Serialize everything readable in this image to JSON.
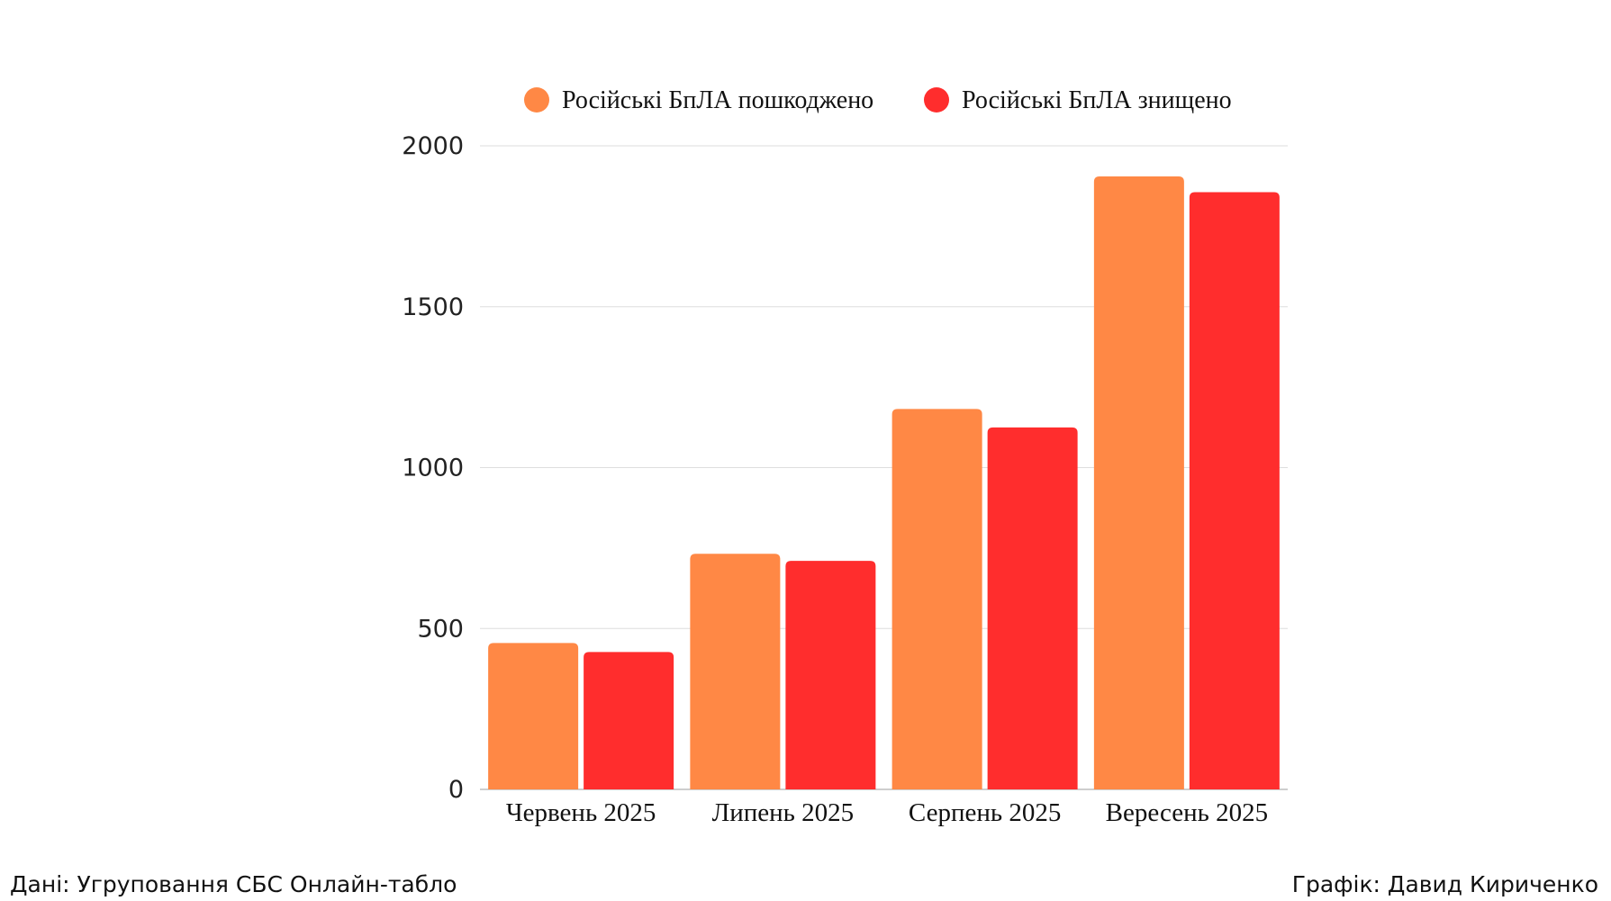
{
  "chart_data": {
    "type": "bar",
    "categories": [
      "Червень 2025",
      "Липень 2025",
      "Серпень 2025",
      "Вересень 2025"
    ],
    "series": [
      {
        "name": "Російські БпЛА пошкоджено",
        "color": "#ff8845",
        "values": [
          455,
          732,
          1182,
          1905
        ]
      },
      {
        "name": "Російські БпЛА знищено",
        "color": "#ff2d2d",
        "values": [
          427,
          710,
          1125,
          1856
        ]
      }
    ],
    "ylim": [
      0,
      2000
    ],
    "yticks": [
      0,
      500,
      1000,
      1500,
      2000
    ],
    "grid": true,
    "legend_position": "top-center",
    "title": "",
    "xlabel": "",
    "ylabel": ""
  },
  "footer": {
    "source": "Дані: Угруповання СБС Онлайн-табло",
    "credit": "Графік: Давид Кириченко"
  }
}
